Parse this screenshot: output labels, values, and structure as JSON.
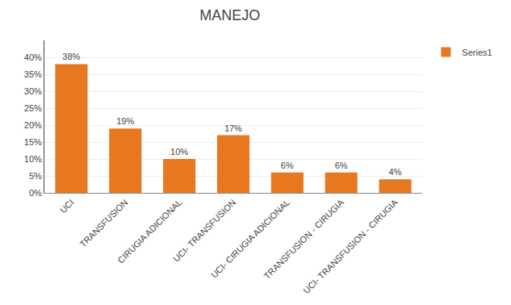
{
  "chart_data": {
    "type": "bar",
    "title": "MANEJO",
    "categories": [
      "UCI",
      "TRANSFUSION",
      "CIRUGIA ADICIONAL",
      "UCI- TRANSFUSION",
      "UCI- CIRUGIA ADICIONAL",
      "TRANSFUSION - CIRUGIA",
      "UCI- TRANSFUSION - CIRUGIA"
    ],
    "series": [
      {
        "name": "Series1",
        "color": "#E87820",
        "values": [
          38,
          19,
          10,
          17,
          6,
          6,
          4
        ],
        "value_labels": [
          "38%",
          "19%",
          "10%",
          "17%",
          "6%",
          "6%",
          "4%"
        ]
      }
    ],
    "ylim": [
      0,
      45
    ],
    "yticks": [
      {
        "value": 0,
        "label": "0%"
      },
      {
        "value": 5,
        "label": "5%"
      },
      {
        "value": 10,
        "label": "10%"
      },
      {
        "value": 15,
        "label": "15%"
      },
      {
        "value": 20,
        "label": "20%"
      },
      {
        "value": 25,
        "label": "25%"
      },
      {
        "value": 30,
        "label": "30%"
      },
      {
        "value": 35,
        "label": "35%"
      },
      {
        "value": 40,
        "label": "40%"
      }
    ],
    "grid": true,
    "legend": "right",
    "data_labels": true
  }
}
